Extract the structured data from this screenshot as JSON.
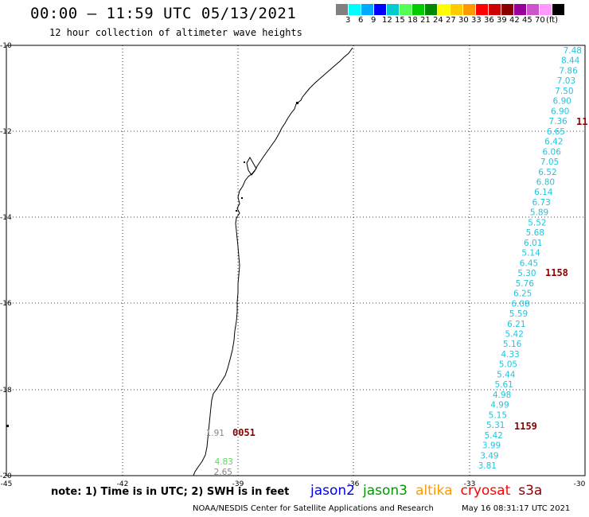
{
  "header": {
    "title": "00:00 – 11:59 UTC 05/13/2021",
    "subtitle": "12 hour collection of altimeter wave heights"
  },
  "legend": {
    "colors": [
      "#808080",
      "#00ffff",
      "#00aaff",
      "#0000ff",
      "#00cccc",
      "#55ff55",
      "#00cc00",
      "#008800",
      "#ffff00",
      "#ffcc00",
      "#ff9900",
      "#ff0000",
      "#cc0000",
      "#880000",
      "#990099",
      "#cc55cc",
      "#ff99ff",
      "#000000"
    ],
    "labels": [
      "3",
      "6",
      "9",
      "12",
      "15",
      "18",
      "21",
      "24",
      "27",
      "30",
      "33",
      "36",
      "39",
      "42",
      "45",
      "70",
      "(ft)"
    ]
  },
  "axes": {
    "x_ticks": [
      "-45",
      "-42",
      "-39",
      "-36",
      "-33",
      "-30"
    ],
    "y_ticks": [
      "-10",
      "-12",
      "-14",
      "-16",
      "-18",
      "-20"
    ]
  },
  "tracks": {
    "east_color": "#22c4dd",
    "east_values": [
      "7.48",
      "8.44",
      "7.86",
      "7.03",
      "7.50",
      "6.90",
      "6.90",
      "7.36",
      "6.65",
      "6.42",
      "6.06",
      "7.05",
      "6.52",
      "6.80",
      "6.14",
      "6.73",
      "5.89",
      "5.52",
      "5.68",
      "6.01",
      "5.14",
      "6.45",
      "5.30",
      "5.76",
      "6.25",
      "6.08",
      "5.59",
      "6.21",
      "5.42",
      "5.16",
      "4.33",
      "5.05",
      "5.44",
      "5.61",
      "4.98",
      "4.99",
      "5.15",
      "5.31",
      "5.42",
      "3.99",
      "3.49",
      "3.81"
    ],
    "west_points": [
      {
        "value": "1.91",
        "color": "#888888"
      },
      {
        "value": "4.83",
        "color": "#55dd55"
      },
      {
        "value": "2.65",
        "color": "#888888"
      }
    ]
  },
  "time_labels": {
    "color": "#8b0000",
    "east_upper": "11",
    "east_middle": "1158",
    "east_lower": "1159",
    "west": "0051"
  },
  "footer": {
    "note": "note: 1) Time is in UTC; 2) SWH is in feet",
    "satellites": [
      {
        "name": "jason2",
        "color": "#0000ee"
      },
      {
        "name": "jason3",
        "color": "#009900"
      },
      {
        "name": "altika",
        "color": "#ff9900"
      },
      {
        "name": "cryosat",
        "color": "#ff0000"
      },
      {
        "name": "s3a",
        "color": "#8b0000"
      }
    ],
    "credit": "NOAA/NESDIS Center for Satellite Applications and Research",
    "timestamp": "May 16 08:31:17 UTC 2021"
  }
}
